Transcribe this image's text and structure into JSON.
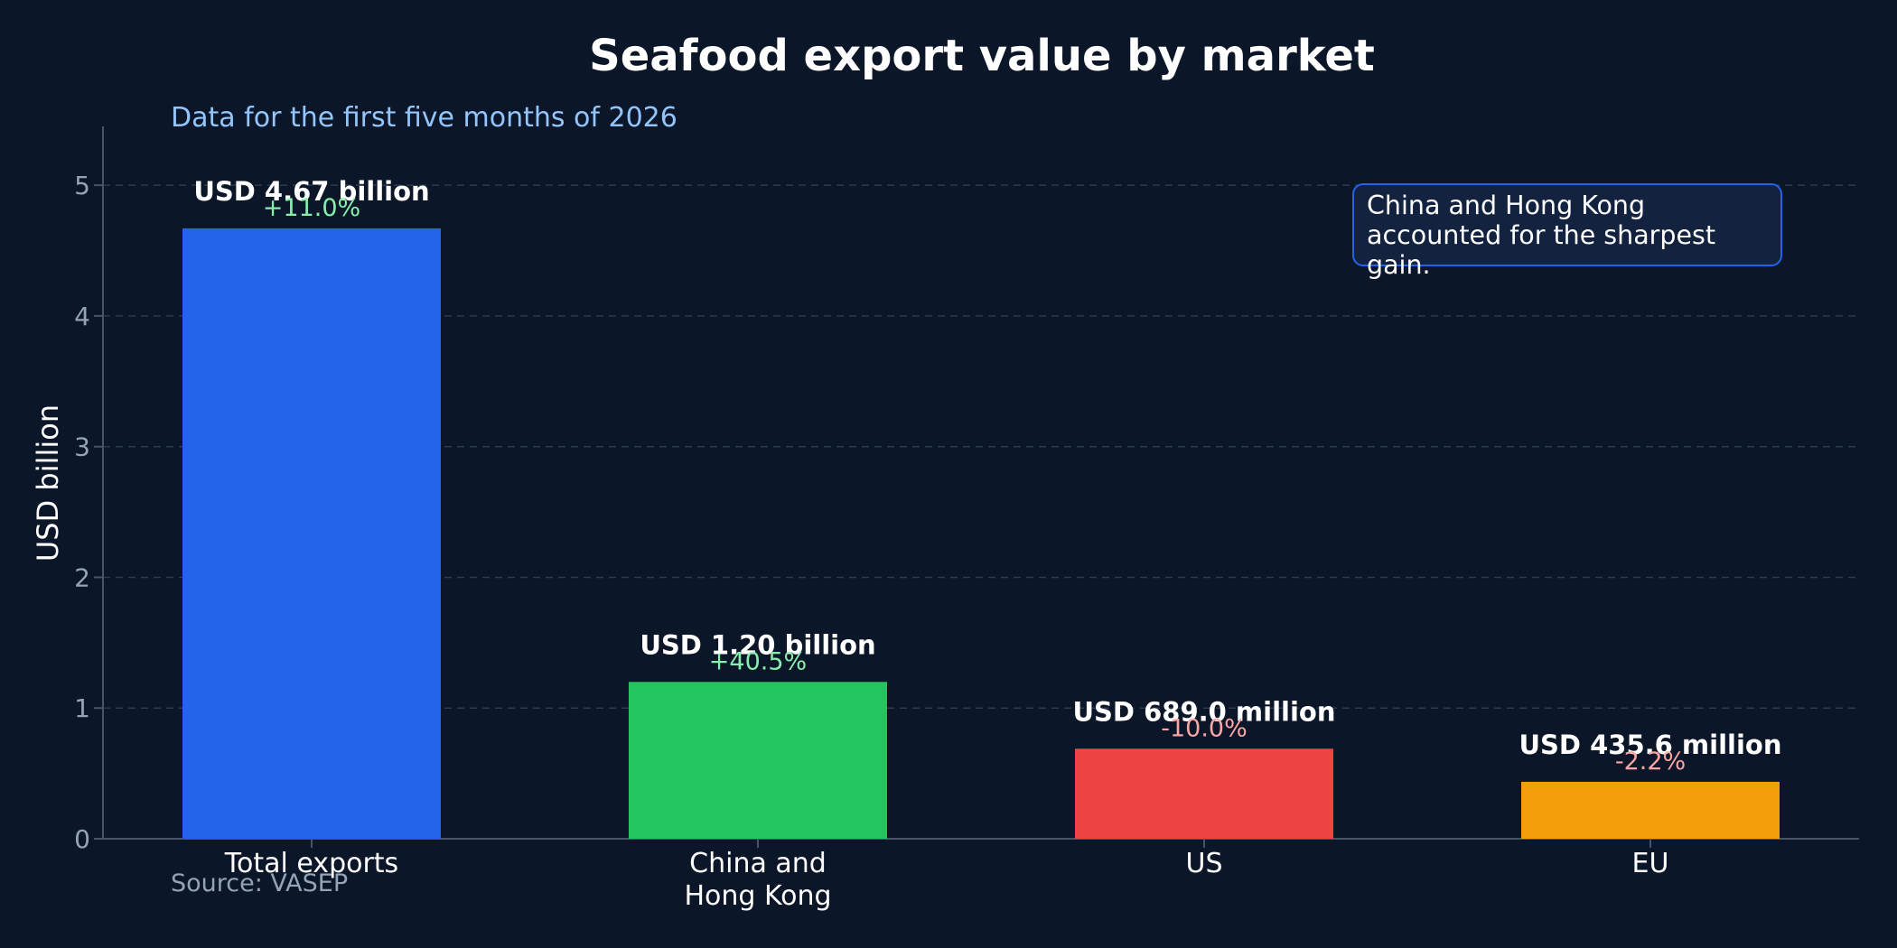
{
  "chart_data": {
    "type": "bar",
    "title": "Seafood export value by market",
    "subtitle": "Data for the first five months of 2026",
    "ylabel": "USD billion",
    "xlabel": "",
    "ylim": [
      0,
      5.45
    ],
    "yticks": [
      0,
      1,
      2,
      3,
      4,
      5
    ],
    "grid": true,
    "categories": [
      "Total exports",
      "China and Hong Kong",
      "US",
      "EU"
    ],
    "category_lines": [
      [
        "Total exports"
      ],
      [
        "China and",
        "Hong Kong"
      ],
      [
        "US"
      ],
      [
        "EU"
      ]
    ],
    "values": [
      4.67,
      1.2,
      0.689,
      0.4356
    ],
    "value_labels": [
      "USD 4.67 billion",
      "USD 1.20 billion",
      "USD 689.0 million",
      "USD 435.6 million"
    ],
    "change_labels": [
      "+11.0%",
      "+40.5%",
      "-10.0%",
      "-2.2%"
    ],
    "bar_colors": [
      "#2563eb",
      "#22c55e",
      "#ef4444",
      "#f59e0b"
    ],
    "change_colors": {
      "positive": "#86efac",
      "negative": "#fca5a5"
    },
    "annotation_lines": [
      "China and Hong Kong",
      "accounted for the sharpest gain."
    ],
    "annotation_placement": "top-right",
    "source": "Source: VASEP"
  },
  "colors": {
    "background": "#0b1628",
    "grid": "#2a3b52",
    "axis": "#475569",
    "annotation_border": "#2563eb"
  }
}
